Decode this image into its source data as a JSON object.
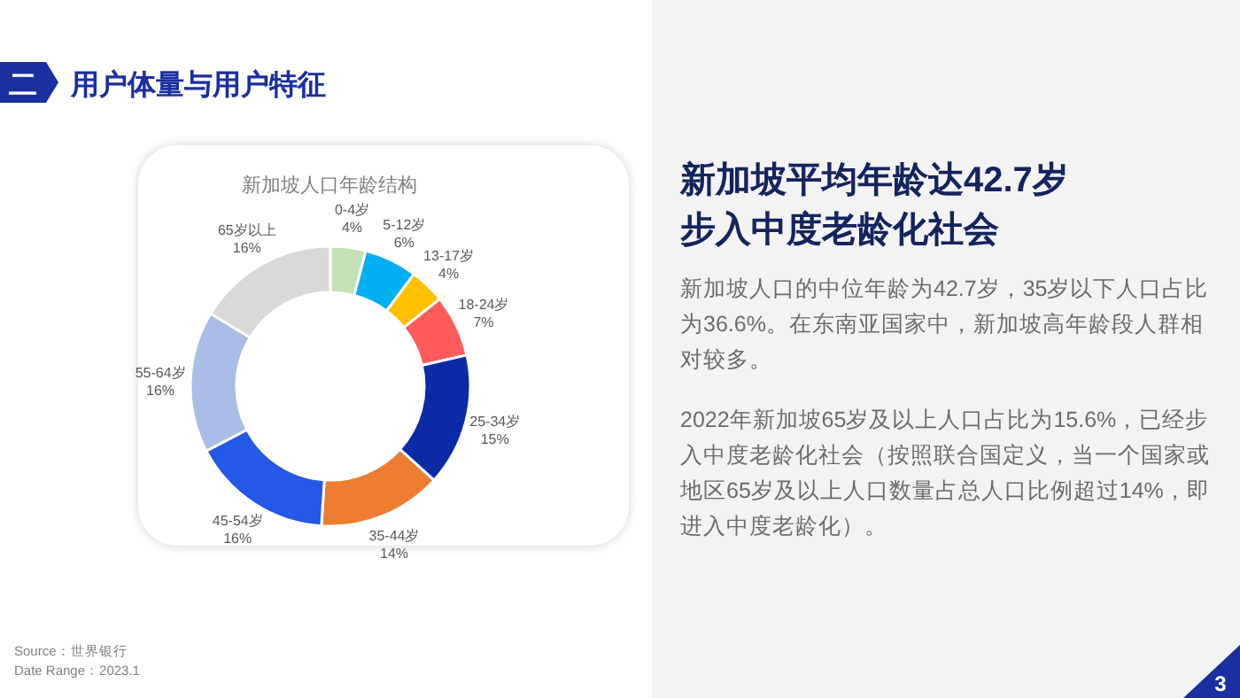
{
  "chart_data": [
    {
      "type": "donut",
      "title": "新加坡人口年龄结构",
      "categories": [
        "0-4岁",
        "5-12岁",
        "13-17岁",
        "18-24岁",
        "25-34岁",
        "35-44岁",
        "45-54岁",
        "55-64岁",
        "65岁以上"
      ],
      "values": [
        4,
        6,
        4,
        7,
        15,
        14,
        16,
        16,
        16
      ],
      "value_labels": [
        "4%",
        "6%",
        "4%",
        "7%",
        "15%",
        "14%",
        "16%",
        "16%",
        "16%"
      ],
      "colors": [
        "#c5e0b4",
        "#00b0f0",
        "#ffc000",
        "#ff5b5b",
        "#0a2aa6",
        "#ed7d31",
        "#2458e6",
        "#a9bde6",
        "#d9d9d9"
      ],
      "annotations": [
        "Source：世界银行",
        "Date Range：2023.1"
      ]
    },
    {
      "type": "other",
      "title": "新加坡平均年龄达42.7岁",
      "subtitle": "步入中度老龄化社会",
      "annotations": [
        "新加坡人口的中位年龄为42.7岁，35岁以下人口占比为36.6%。在东南亚国家中，新加坡高年龄段人群相对较多。",
        "2022年新加坡65岁及以上人口占比为15.6%，已经步入中度老龄化社会（按照联合国定义，当一个国家或地区65岁及以上人口数量占总人口比例超过14%，即进入中度老龄化）。"
      ]
    },
    {
      "type": "other",
      "title": "用户体量与用户特征",
      "annotations": [
        "二",
        "3"
      ]
    }
  ]
}
